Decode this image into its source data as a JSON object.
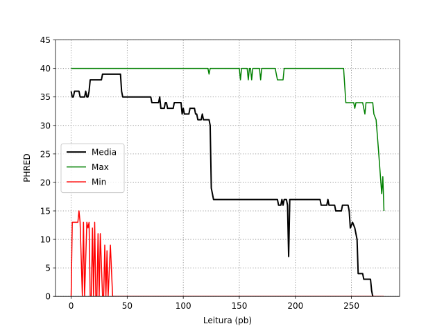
{
  "chart_data": {
    "type": "line",
    "xlabel": "Leitura (pb)",
    "ylabel": "PHRED",
    "xlim": [
      -13.95,
      292.95
    ],
    "ylim": [
      0,
      45
    ],
    "xticks": [
      0,
      50,
      100,
      150,
      200,
      250
    ],
    "yticks": [
      0,
      5,
      10,
      15,
      20,
      25,
      30,
      35,
      40,
      45
    ],
    "grid": true,
    "legend": "center left",
    "series": [
      {
        "name": "Media",
        "color": "#000000",
        "x": [
          0,
          1,
          2,
          3,
          7,
          8,
          12,
          13,
          14,
          15,
          16,
          17,
          27,
          28,
          44,
          45,
          46,
          71,
          72,
          78,
          79,
          80,
          83,
          84,
          85,
          86,
          91,
          92,
          98,
          99,
          100,
          101,
          102,
          105,
          106,
          110,
          111,
          112,
          113,
          114,
          116,
          117,
          118,
          119,
          123,
          124,
          125,
          127,
          184,
          185,
          187,
          188,
          189,
          190,
          192,
          193,
          194,
          195,
          222,
          223,
          228,
          229,
          230,
          235,
          236,
          237,
          241,
          242,
          247,
          248,
          249,
          251,
          253,
          255,
          256,
          260,
          261,
          267,
          268,
          269,
          270
        ],
        "values": [
          36,
          35,
          35,
          36,
          36,
          35,
          35,
          36,
          35,
          35,
          36,
          38,
          38,
          39,
          39,
          36,
          35,
          35,
          34,
          34,
          35,
          33,
          33,
          34,
          34,
          33,
          33,
          34,
          34,
          32,
          33,
          32,
          32,
          32,
          33,
          33,
          32,
          32,
          31,
          31,
          31,
          32,
          31,
          31,
          31,
          30,
          19,
          17,
          17,
          16,
          16,
          17,
          16,
          17,
          17,
          16,
          7,
          17,
          17,
          16,
          16,
          17,
          16,
          16,
          15,
          15,
          15,
          16,
          16,
          15,
          12,
          13,
          12,
          10,
          4,
          4,
          3,
          3,
          1,
          0,
          0
        ]
      },
      {
        "name": "Max",
        "color": "#008000",
        "x": [
          0,
          122,
          123,
          124,
          150,
          151,
          152,
          157,
          158,
          159,
          160,
          161,
          162,
          167,
          168,
          169,
          170,
          182,
          184,
          189,
          190,
          243,
          245,
          252,
          253,
          254,
          260,
          262,
          263,
          269,
          270,
          272,
          274,
          277,
          278,
          279
        ],
        "values": [
          40,
          40,
          39,
          40,
          40,
          38,
          40,
          40,
          38,
          40,
          40,
          38,
          40,
          40,
          40,
          38,
          40,
          40,
          38,
          38,
          40,
          40,
          34,
          34,
          33,
          34,
          34,
          32,
          34,
          34,
          32,
          31,
          26,
          18,
          21,
          15
        ]
      },
      {
        "name": "Min",
        "color": "#ff0000",
        "x": [
          0,
          1,
          5,
          6,
          7,
          8,
          10,
          11,
          12,
          14,
          15,
          16,
          17,
          18,
          19,
          20,
          21,
          22,
          23,
          24,
          25,
          26,
          28,
          29,
          30,
          31,
          32,
          33,
          35,
          37,
          279
        ],
        "values": [
          0,
          13,
          13,
          13,
          15,
          13,
          0,
          13,
          0,
          13,
          12,
          13,
          0,
          0,
          12,
          0,
          13,
          0,
          0,
          11,
          0,
          11,
          0,
          0,
          9,
          0,
          8,
          0,
          9,
          0,
          0
        ]
      }
    ]
  }
}
